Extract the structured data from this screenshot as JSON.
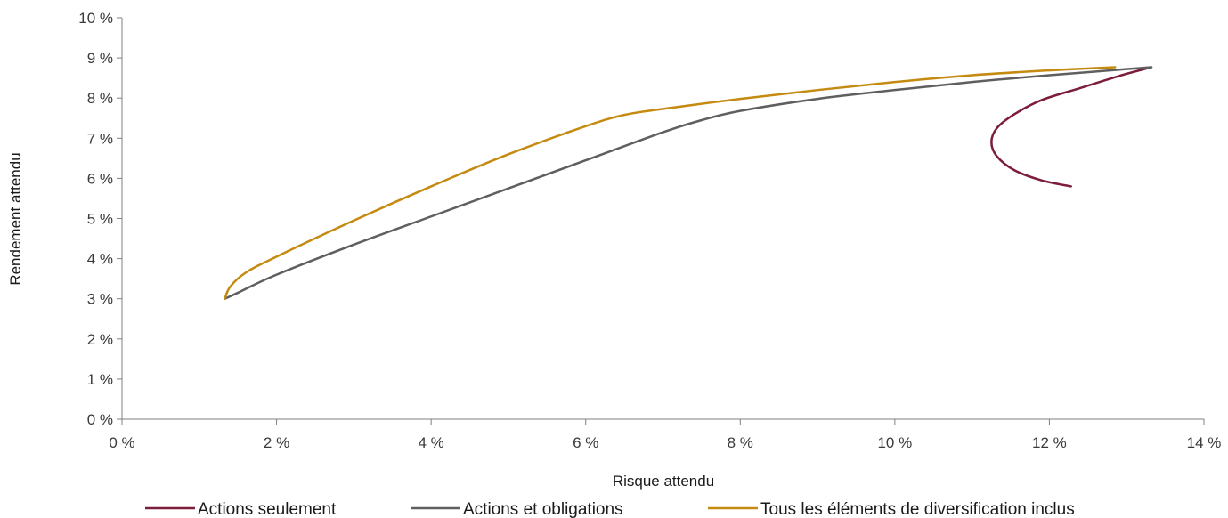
{
  "chart_data": {
    "type": "line",
    "xlabel": "Risque attendu",
    "ylabel": "Rendement attendu",
    "xlim": [
      0,
      14
    ],
    "ylim": [
      0,
      10
    ],
    "x_ticks": [
      0,
      2,
      4,
      6,
      8,
      10,
      12,
      14
    ],
    "y_ticks": [
      0,
      1,
      2,
      3,
      4,
      5,
      6,
      7,
      8,
      9,
      10
    ],
    "x_tick_labels": [
      "0 %",
      "2 %",
      "4 %",
      "6 %",
      "8 %",
      "10 %",
      "12 %",
      "14 %"
    ],
    "y_tick_labels": [
      "0 %",
      "1 %",
      "2 %",
      "3 %",
      "4 %",
      "5 %",
      "6 %",
      "7 %",
      "8 %",
      "9 %",
      "10 %"
    ],
    "grid": false,
    "legend_position": "bottom",
    "series": [
      {
        "name": "Actions seulement",
        "color": "#7b1e3a",
        "points": [
          [
            12.28,
            5.8
          ],
          [
            11.9,
            5.95
          ],
          [
            11.55,
            6.2
          ],
          [
            11.32,
            6.55
          ],
          [
            11.25,
            6.9
          ],
          [
            11.32,
            7.25
          ],
          [
            11.55,
            7.6
          ],
          [
            11.9,
            7.95
          ],
          [
            12.4,
            8.25
          ],
          [
            12.9,
            8.55
          ],
          [
            13.32,
            8.77
          ]
        ]
      },
      {
        "name": "Actions et obligations",
        "color": "#5f5f5f",
        "points": [
          [
            1.33,
            3.0
          ],
          [
            1.5,
            3.15
          ],
          [
            2.0,
            3.6
          ],
          [
            3.0,
            4.35
          ],
          [
            4.0,
            5.05
          ],
          [
            5.0,
            5.75
          ],
          [
            6.0,
            6.45
          ],
          [
            7.0,
            7.15
          ],
          [
            7.5,
            7.45
          ],
          [
            8.0,
            7.68
          ],
          [
            9.0,
            7.98
          ],
          [
            10.0,
            8.2
          ],
          [
            11.0,
            8.4
          ],
          [
            12.0,
            8.57
          ],
          [
            13.32,
            8.77
          ]
        ]
      },
      {
        "name": "Tous les éléments de diversification inclus",
        "color": "#c58a10",
        "points": [
          [
            1.33,
            3.0
          ],
          [
            1.4,
            3.3
          ],
          [
            1.6,
            3.65
          ],
          [
            2.0,
            4.05
          ],
          [
            3.0,
            4.95
          ],
          [
            4.0,
            5.8
          ],
          [
            5.0,
            6.6
          ],
          [
            6.0,
            7.3
          ],
          [
            6.5,
            7.58
          ],
          [
            7.0,
            7.73
          ],
          [
            8.0,
            7.98
          ],
          [
            9.0,
            8.2
          ],
          [
            10.0,
            8.4
          ],
          [
            11.0,
            8.57
          ],
          [
            12.0,
            8.69
          ],
          [
            12.85,
            8.77
          ]
        ]
      }
    ]
  }
}
